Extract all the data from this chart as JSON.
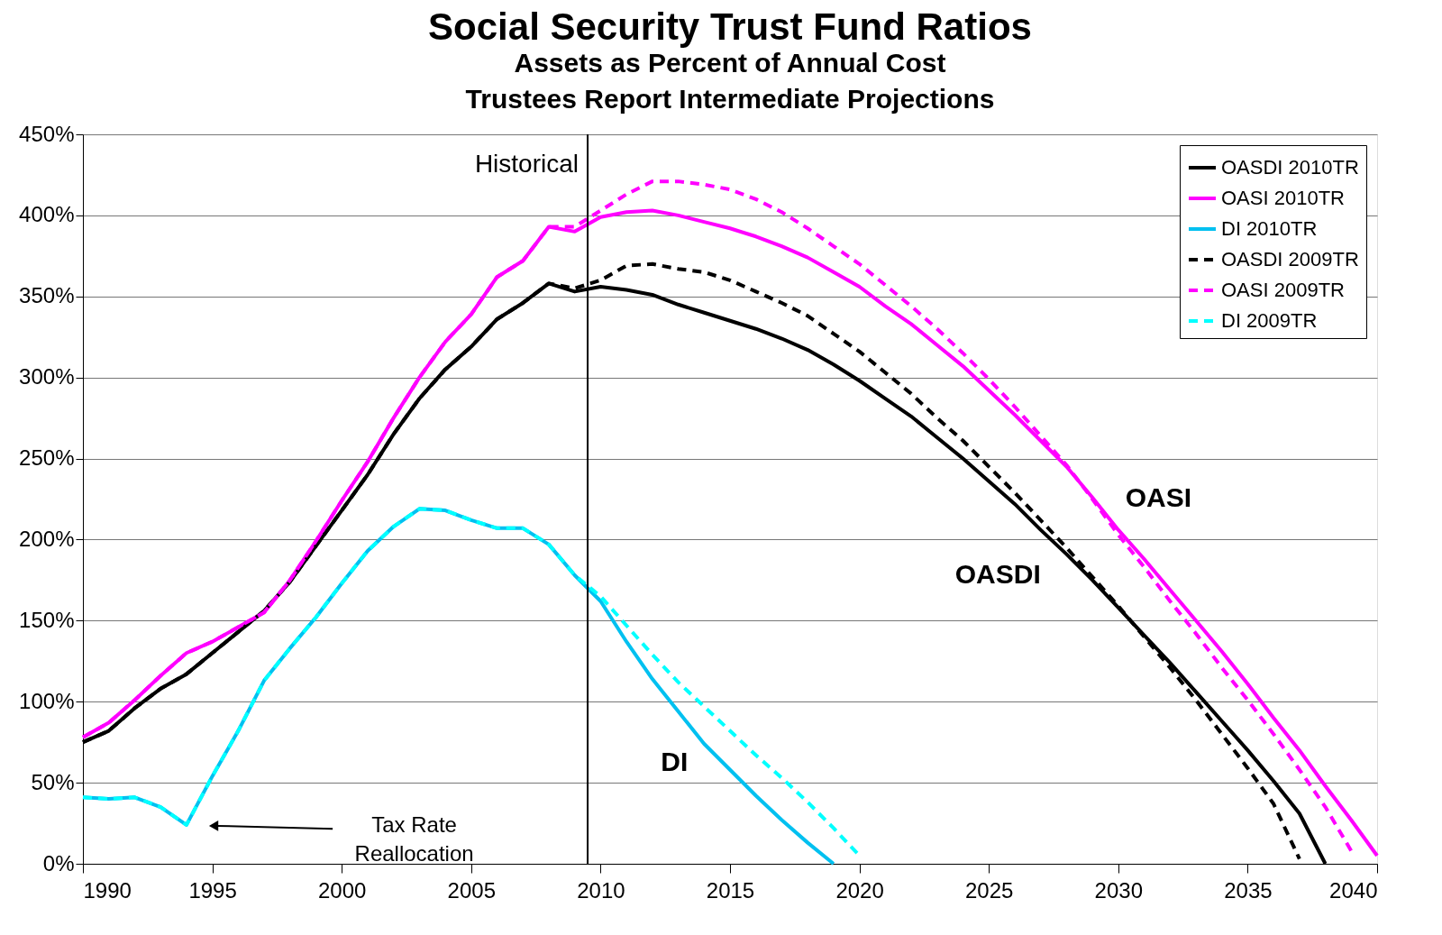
{
  "chart_data": {
    "type": "line",
    "title": "Social Security Trust Fund Ratios",
    "subtitle": "Assets as Percent of Annual Cost\nTrustees Report Intermediate Projections",
    "xlim": [
      1990,
      2040
    ],
    "xticks": [
      1990,
      1995,
      2000,
      2005,
      2010,
      2015,
      2020,
      2025,
      2030,
      2035,
      2040
    ],
    "ylim": [
      0,
      450
    ],
    "yticks": [
      {
        "value": 0,
        "label": "0%"
      },
      {
        "value": 50,
        "label": "50%"
      },
      {
        "value": 100,
        "label": "100%"
      },
      {
        "value": 150,
        "label": "150%"
      },
      {
        "value": 200,
        "label": "200%"
      },
      {
        "value": 250,
        "label": "250%"
      },
      {
        "value": 300,
        "label": "300%"
      },
      {
        "value": 350,
        "label": "350%"
      },
      {
        "value": 400,
        "label": "400%"
      },
      {
        "value": 450,
        "label": "450%"
      }
    ],
    "grid": "y",
    "legend": "top right",
    "marker": "none",
    "ref_lines": [
      {
        "axis": "x",
        "value": 2009.5,
        "label": "Historical",
        "color": "#000000",
        "line_style": "solid"
      }
    ],
    "annotations": [
      "OASI",
      "OASDI",
      "DI",
      "Tax Rate\nReallocation"
    ],
    "series": [
      {
        "name": "OASDI 2010TR",
        "color": "#000000",
        "line_style": "solid",
        "x": [
          1990,
          1991,
          1992,
          1993,
          1994,
          1995,
          1996,
          1997,
          1998,
          1999,
          2000,
          2001,
          2002,
          2003,
          2004,
          2005,
          2006,
          2007,
          2008,
          2009,
          2010,
          2011,
          2012,
          2013,
          2014,
          2015,
          2016,
          2017,
          2018,
          2019,
          2020,
          2021,
          2022,
          2023,
          2024,
          2025,
          2026,
          2027,
          2028,
          2029,
          2030,
          2031,
          2032,
          2033,
          2034,
          2035,
          2036,
          2037,
          2038
        ],
        "values": [
          75,
          82,
          96,
          108,
          117,
          130,
          143,
          156,
          174,
          196,
          218,
          240,
          265,
          287,
          305,
          319,
          336,
          346,
          358,
          353,
          356,
          354,
          351,
          345,
          340,
          335,
          330,
          324,
          317,
          308,
          298,
          287,
          276,
          263,
          250,
          236,
          222,
          206,
          191,
          175,
          158,
          141,
          124,
          106,
          88,
          70,
          51,
          31,
          0
        ]
      },
      {
        "name": "OASI 2010TR",
        "color": "#ff00ff",
        "line_style": "solid",
        "x": [
          1990,
          1991,
          1992,
          1993,
          1994,
          1995,
          1996,
          1997,
          1998,
          1999,
          2000,
          2001,
          2002,
          2003,
          2004,
          2005,
          2006,
          2007,
          2008,
          2009,
          2010,
          2011,
          2012,
          2013,
          2014,
          2015,
          2016,
          2017,
          2018,
          2019,
          2020,
          2021,
          2022,
          2023,
          2024,
          2025,
          2026,
          2027,
          2028,
          2029,
          2030,
          2031,
          2032,
          2033,
          2034,
          2035,
          2036,
          2037,
          2038,
          2039,
          2040
        ],
        "values": [
          78,
          87,
          101,
          116,
          130,
          137,
          146,
          155,
          175,
          199,
          224,
          248,
          275,
          300,
          322,
          339,
          362,
          372,
          393,
          390,
          399,
          402,
          403,
          400,
          396,
          392,
          387,
          381,
          374,
          365,
          356,
          344,
          333,
          320,
          307,
          292,
          277,
          261,
          245,
          226,
          206,
          188,
          169,
          150,
          131,
          111,
          90,
          70,
          48,
          27,
          5
        ]
      },
      {
        "name": "DI 2010TR",
        "color": "#00c0f0",
        "line_style": "solid",
        "x": [
          1990,
          1991,
          1992,
          1993,
          1994,
          1995,
          1996,
          1997,
          1998,
          1999,
          2000,
          2001,
          2002,
          2003,
          2004,
          2005,
          2006,
          2007,
          2008,
          2009,
          2010,
          2011,
          2012,
          2013,
          2014,
          2015,
          2016,
          2017,
          2018,
          2019
        ],
        "values": [
          41,
          40,
          41,
          35,
          24,
          54,
          82,
          113,
          133,
          152,
          173,
          193,
          208,
          219,
          218,
          212,
          207,
          207,
          197,
          178,
          162,
          137,
          114,
          94,
          74,
          58,
          42,
          27,
          13,
          0
        ]
      },
      {
        "name": "OASDI 2009TR",
        "color": "#000000",
        "line_style": "dashed",
        "x": [
          1990,
          1991,
          1992,
          1993,
          1994,
          1995,
          1996,
          1997,
          1998,
          1999,
          2000,
          2001,
          2002,
          2003,
          2004,
          2005,
          2006,
          2007,
          2008,
          2009,
          2010,
          2011,
          2012,
          2013,
          2014,
          2015,
          2016,
          2017,
          2018,
          2019,
          2020,
          2021,
          2022,
          2023,
          2024,
          2025,
          2026,
          2027,
          2028,
          2029,
          2030,
          2031,
          2032,
          2033,
          2034,
          2035,
          2036,
          2037
        ],
        "values": [
          75,
          82,
          96,
          108,
          117,
          130,
          143,
          156,
          174,
          196,
          218,
          240,
          265,
          287,
          305,
          319,
          336,
          346,
          358,
          355,
          360,
          369,
          370,
          367,
          365,
          360,
          353,
          346,
          338,
          327,
          316,
          303,
          290,
          275,
          261,
          245,
          229,
          212,
          195,
          177,
          159,
          140,
          121,
          101,
          80,
          59,
          37,
          3
        ]
      },
      {
        "name": "OASI 2009TR",
        "color": "#ff00ff",
        "line_style": "dashed",
        "x": [
          1990,
          1991,
          1992,
          1993,
          1994,
          1995,
          1996,
          1997,
          1998,
          1999,
          2000,
          2001,
          2002,
          2003,
          2004,
          2005,
          2006,
          2007,
          2008,
          2009,
          2010,
          2011,
          2012,
          2013,
          2014,
          2015,
          2016,
          2017,
          2018,
          2019,
          2020,
          2021,
          2022,
          2023,
          2024,
          2025,
          2026,
          2027,
          2028,
          2029,
          2030,
          2031,
          2032,
          2033,
          2034,
          2035,
          2036,
          2037,
          2038,
          2039
        ],
        "values": [
          78,
          87,
          101,
          116,
          130,
          137,
          146,
          155,
          175,
          199,
          224,
          248,
          275,
          300,
          322,
          339,
          362,
          372,
          393,
          393,
          403,
          413,
          421,
          421,
          419,
          416,
          410,
          402,
          392,
          381,
          370,
          357,
          344,
          330,
          315,
          299,
          282,
          264,
          246,
          225,
          203,
          183,
          162,
          142,
          121,
          101,
          80,
          58,
          35,
          8
        ]
      },
      {
        "name": "DI 2009TR",
        "color": "#00ffff",
        "line_style": "dashed",
        "x": [
          1990,
          1991,
          1992,
          1993,
          1994,
          1995,
          1996,
          1997,
          1998,
          1999,
          2000,
          2001,
          2002,
          2003,
          2004,
          2005,
          2006,
          2007,
          2008,
          2009,
          2010,
          2011,
          2012,
          2013,
          2014,
          2015,
          2016,
          2017,
          2018,
          2019,
          2020
        ],
        "values": [
          41,
          40,
          41,
          35,
          24,
          54,
          82,
          113,
          133,
          152,
          173,
          193,
          208,
          219,
          218,
          212,
          207,
          207,
          197,
          178,
          165,
          147,
          129,
          112,
          97,
          82,
          67,
          53,
          38,
          22,
          5
        ]
      }
    ]
  }
}
